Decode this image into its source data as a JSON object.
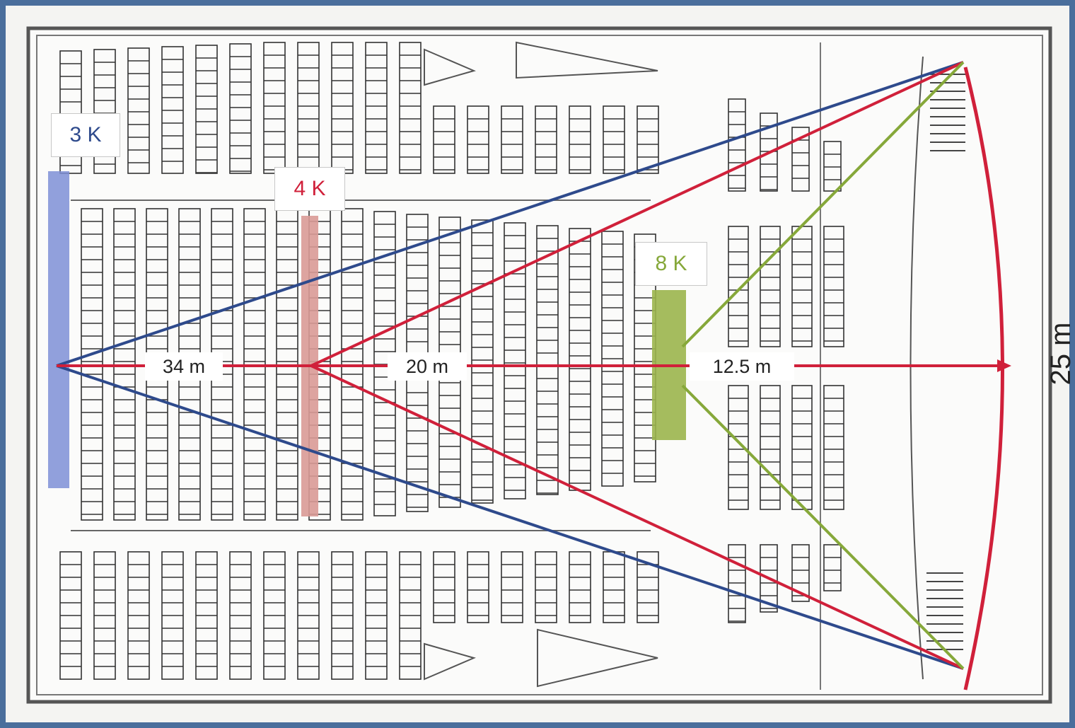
{
  "labels": {
    "k3": "3 K",
    "k4": "4 K",
    "k8": "8 K"
  },
  "distances": {
    "d34": "34 m",
    "d20": "20 m",
    "d12": "12.5 m",
    "screen_width": "25 m"
  },
  "colors": {
    "k3": "#2e4a8c",
    "k4": "#d0203a",
    "k8": "#86a83a",
    "k3_fill": "#7e8fd6",
    "k4_fill": "#d99a96",
    "k8_fill": "#9bb54c"
  }
}
